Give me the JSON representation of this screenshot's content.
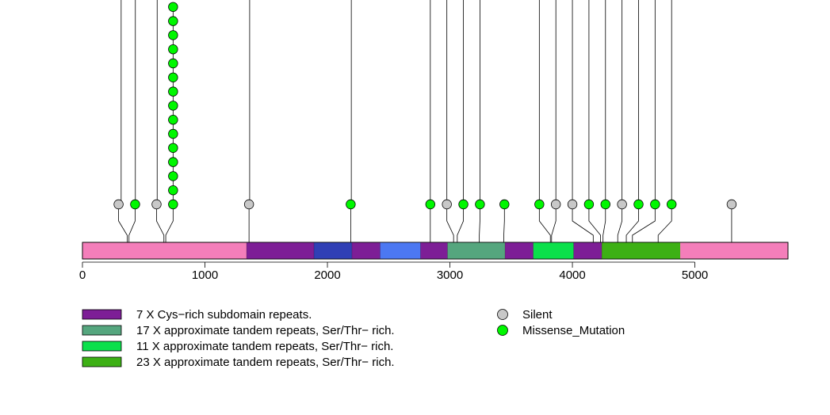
{
  "chart_data": {
    "type": "lollipop",
    "x_axis": {
      "min": 0,
      "max": 5760,
      "ticks": [
        0,
        1000,
        2000,
        3000,
        4000,
        5000
      ]
    },
    "protein_length": 5760,
    "backbone_color": "#F47EBA",
    "domains": [
      {
        "start": 1340,
        "end": 1890,
        "color": "#7D1E96",
        "legend_index": 0
      },
      {
        "start": 1890,
        "end": 2200,
        "color": "#303FB5"
      },
      {
        "start": 2200,
        "end": 2430,
        "color": "#7D1E96",
        "legend_index": 0
      },
      {
        "start": 2430,
        "end": 2760,
        "color": "#4C78F2"
      },
      {
        "start": 2760,
        "end": 2980,
        "color": "#7D1E96",
        "legend_index": 0
      },
      {
        "start": 2980,
        "end": 3450,
        "color": "#55A67E",
        "legend_index": 1
      },
      {
        "start": 3450,
        "end": 3680,
        "color": "#7D1E96",
        "legend_index": 0
      },
      {
        "start": 3680,
        "end": 4010,
        "color": "#0BE04B",
        "legend_index": 2
      },
      {
        "start": 4010,
        "end": 4240,
        "color": "#7D1E96",
        "legend_index": 0
      },
      {
        "start": 4240,
        "end": 4880,
        "color": "#3DB015",
        "legend_index": 3
      }
    ],
    "mutations": [
      {
        "position": 365,
        "type": "Silent",
        "count": 1,
        "head_x": 295
      },
      {
        "position": 380,
        "type": "Missense_Mutation",
        "count": 1,
        "head_x": 430
      },
      {
        "position": 665,
        "type": "Silent",
        "count": 1,
        "head_x": 605
      },
      {
        "position": 680,
        "type": "Missense_Mutation",
        "count": 15,
        "head_x": 740
      },
      {
        "position": 1360,
        "type": "Silent",
        "count": 1,
        "head_x": 1360
      },
      {
        "position": 2190,
        "type": "Missense_Mutation",
        "count": 1,
        "head_x": 2190
      },
      {
        "position": 2840,
        "type": "Missense_Mutation",
        "count": 1,
        "head_x": 2840
      },
      {
        "position": 3030,
        "type": "Silent",
        "count": 1,
        "head_x": 2975
      },
      {
        "position": 3060,
        "type": "Missense_Mutation",
        "count": 1,
        "head_x": 3110
      },
      {
        "position": 3240,
        "type": "Missense_Mutation",
        "count": 1,
        "head_x": 3245
      },
      {
        "position": 3440,
        "type": "Missense_Mutation",
        "count": 1,
        "head_x": 3445
      },
      {
        "position": 3820,
        "type": "Missense_Mutation",
        "count": 1,
        "head_x": 3730
      },
      {
        "position": 3830,
        "type": "Silent",
        "count": 1,
        "head_x": 3865
      },
      {
        "position": 4170,
        "type": "Silent",
        "count": 1,
        "head_x": 4000
      },
      {
        "position": 4230,
        "type": "Missense_Mutation",
        "count": 1,
        "head_x": 4135
      },
      {
        "position": 4250,
        "type": "Missense_Mutation",
        "count": 1,
        "head_x": 4270
      },
      {
        "position": 4370,
        "type": "Silent",
        "count": 1,
        "head_x": 4405
      },
      {
        "position": 4440,
        "type": "Missense_Mutation",
        "count": 1,
        "head_x": 4540
      },
      {
        "position": 4490,
        "type": "Missense_Mutation",
        "count": 1,
        "head_x": 4675
      },
      {
        "position": 4700,
        "type": "Missense_Mutation",
        "count": 1,
        "head_x": 4810
      },
      {
        "position": 5300,
        "type": "Silent",
        "count": 1,
        "head_x": 5300
      },
      {
        "position": 316,
        "type": "Silent",
        "count": 1,
        "head_x": 316,
        "stem_only": true
      },
      {
        "position": 432,
        "type": "Missense_Mutation",
        "count": 1,
        "head_x": 432,
        "stem_only": true
      },
      {
        "position": 610,
        "type": "Silent",
        "count": 1,
        "head_x": 610,
        "stem_only": true
      },
      {
        "position": 1365,
        "type": "Silent",
        "count": 1,
        "head_x": 1365,
        "stem_only": true
      },
      {
        "position": 2195,
        "type": "Missense_Mutation",
        "count": 1,
        "head_x": 2195,
        "stem_only": true
      },
      {
        "position": 2840,
        "type": "Missense_Mutation",
        "count": 1,
        "head_x": 2840,
        "stem_only": true
      },
      {
        "position": 2975,
        "type": "Silent",
        "count": 1,
        "head_x": 2975,
        "stem_only": true
      },
      {
        "position": 3110,
        "type": "Missense_Mutation",
        "count": 1,
        "head_x": 3110,
        "stem_only": true
      },
      {
        "position": 3245,
        "type": "Missense_Mutation",
        "count": 1,
        "head_x": 3245,
        "stem_only": true
      },
      {
        "position": 3730,
        "type": "Missense_Mutation",
        "count": 1,
        "head_x": 3730,
        "stem_only": true
      },
      {
        "position": 3865,
        "type": "Silent",
        "count": 1,
        "head_x": 3865,
        "stem_only": true
      },
      {
        "position": 4000,
        "type": "Silent",
        "count": 1,
        "head_x": 4000,
        "stem_only": true
      },
      {
        "position": 4135,
        "type": "Missense_Mutation",
        "count": 1,
        "head_x": 4135,
        "stem_only": true
      },
      {
        "position": 4270,
        "type": "Missense_Mutation",
        "count": 1,
        "head_x": 4270,
        "stem_only": true
      },
      {
        "position": 4405,
        "type": "Silent",
        "count": 1,
        "head_x": 4405,
        "stem_only": true
      },
      {
        "position": 4540,
        "type": "Missense_Mutation",
        "count": 1,
        "head_x": 4540,
        "stem_only": true
      },
      {
        "position": 4675,
        "type": "Missense_Mutation",
        "count": 1,
        "head_x": 4675,
        "stem_only": true
      },
      {
        "position": 4810,
        "type": "Missense_Mutation",
        "count": 1,
        "head_x": 4810,
        "stem_only": true
      }
    ],
    "mutation_colors": {
      "Silent": "#C8C8C8",
      "Missense_Mutation": "#00F700"
    },
    "domain_legend": [
      {
        "label": "7 X Cys−rich subdomain repeats.",
        "color": "#7D1E96"
      },
      {
        "label": "17 X approximate tandem repeats, Ser/Thr− rich.",
        "color": "#55A67E"
      },
      {
        "label": "11 X approximate tandem repeats, Ser/Thr− rich.",
        "color": "#0BE04B"
      },
      {
        "label": "23 X approximate tandem repeats, Ser/Thr− rich.",
        "color": "#3DB015"
      }
    ],
    "mutation_legend": [
      {
        "label": "Silent",
        "color": "#C8C8C8"
      },
      {
        "label": "Missense_Mutation",
        "color": "#00F700"
      }
    ]
  }
}
